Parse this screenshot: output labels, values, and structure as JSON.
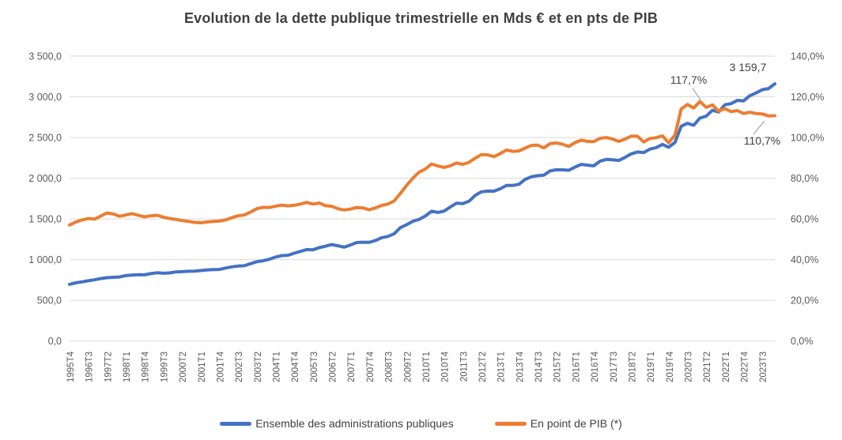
{
  "title": "Evolution de la dette publique trimestrielle en Mds € et en pts de PIB",
  "colors": {
    "debt_line": "#4472C4",
    "pib_line": "#ED7D31",
    "grid": "#D9D9D9",
    "axis_text": "#595959",
    "annotation_text": "#404040",
    "leader": "#A6A6A6",
    "background": "#FFFFFF"
  },
  "annotations": {
    "pib_peak": "117,7%",
    "debt_last": "3 159,7",
    "pib_last": "110,7%"
  },
  "y_axis_left": {
    "ticks": [
      "3 500,0",
      "3 000,0",
      "2 500,0",
      "2 000,0",
      "1 500,0",
      "1 000,0",
      "500,0",
      "0,0"
    ]
  },
  "y_axis_right": {
    "ticks": [
      "140,0%",
      "120,0%",
      "100,0%",
      "80,0%",
      "60,0%",
      "40,0%",
      "20,0%",
      "0,0%"
    ]
  },
  "legend": [
    {
      "label": "Ensemble des administrations publiques",
      "color": "#4472C4"
    },
    {
      "label": "En point de PIB (*)",
      "color": "#ED7D31"
    }
  ],
  "chart_data": {
    "type": "line",
    "title": "Evolution de la dette publique trimestrielle en Mds € et en pts de PIB",
    "grid": true,
    "legend_position": "bottom",
    "y_left_range": [
      0,
      3500
    ],
    "y_right_range": [
      0,
      140
    ],
    "x_tick_labels": [
      "1995T4",
      "1996T3",
      "1997T2",
      "1998T1",
      "1998T4",
      "1999T3",
      "2000T2",
      "2001T1",
      "2001T4",
      "2002T3",
      "2003T2",
      "2004T1",
      "2004T4",
      "2005T3",
      "2006T2",
      "2007T1",
      "2007T4",
      "2008T3",
      "2009T2",
      "2010T1",
      "2010T4",
      "2011T3",
      "2012T2",
      "2013T1",
      "2013T4",
      "2014T3",
      "2015T2",
      "2016T1",
      "2016T4",
      "2017T3",
      "2018T2",
      "2019T1",
      "2019T4",
      "2020T3",
      "2021T2",
      "2022T1",
      "2022T4",
      "2023T3"
    ],
    "x": [
      "1995T4",
      "1996T1",
      "1996T2",
      "1996T3",
      "1996T4",
      "1997T1",
      "1997T2",
      "1997T3",
      "1997T4",
      "1998T1",
      "1998T2",
      "1998T3",
      "1998T4",
      "1999T1",
      "1999T2",
      "1999T3",
      "1999T4",
      "2000T1",
      "2000T2",
      "2000T3",
      "2000T4",
      "2001T1",
      "2001T2",
      "2001T3",
      "2001T4",
      "2002T1",
      "2002T2",
      "2002T3",
      "2002T4",
      "2003T1",
      "2003T2",
      "2003T3",
      "2003T4",
      "2004T1",
      "2004T2",
      "2004T3",
      "2004T4",
      "2005T1",
      "2005T2",
      "2005T3",
      "2005T4",
      "2006T1",
      "2006T2",
      "2006T3",
      "2006T4",
      "2007T1",
      "2007T2",
      "2007T3",
      "2007T4",
      "2008T1",
      "2008T2",
      "2008T3",
      "2008T4",
      "2009T1",
      "2009T2",
      "2009T3",
      "2009T4",
      "2010T1",
      "2010T2",
      "2010T3",
      "2010T4",
      "2011T1",
      "2011T2",
      "2011T3",
      "2011T4",
      "2012T1",
      "2012T2",
      "2012T3",
      "2012T4",
      "2013T1",
      "2013T2",
      "2013T3",
      "2013T4",
      "2014T1",
      "2014T2",
      "2014T3",
      "2014T4",
      "2015T1",
      "2015T2",
      "2015T3",
      "2015T4",
      "2016T1",
      "2016T2",
      "2016T3",
      "2016T4",
      "2017T1",
      "2017T2",
      "2017T3",
      "2017T4",
      "2018T1",
      "2018T2",
      "2018T3",
      "2018T4",
      "2019T1",
      "2019T2",
      "2019T3",
      "2019T4",
      "2020T1",
      "2020T2",
      "2020T3",
      "2020T4",
      "2021T1",
      "2021T2",
      "2021T3",
      "2021T4",
      "2022T1",
      "2022T2",
      "2022T3",
      "2022T4",
      "2023T1",
      "2023T2",
      "2023T3",
      "2023T4",
      "2024T1"
    ],
    "series": [
      {
        "name": "Ensemble des administrations publiques",
        "axis": "left",
        "unit": "Mds €",
        "color": "#4472C4",
        "values": [
          697,
          715,
          727,
          740,
          752,
          768,
          778,
          783,
          787,
          803,
          810,
          815,
          813,
          828,
          838,
          833,
          836,
          848,
          852,
          857,
          858,
          866,
          872,
          877,
          879,
          897,
          911,
          921,
          925,
          950,
          974,
          986,
          1004,
          1031,
          1049,
          1054,
          1079,
          1101,
          1124,
          1121,
          1147,
          1164,
          1185,
          1170,
          1153,
          1179,
          1210,
          1214,
          1212,
          1234,
          1269,
          1285,
          1318,
          1392,
          1428,
          1471,
          1493,
          1535,
          1594,
          1580,
          1595,
          1646,
          1693,
          1688,
          1717,
          1789,
          1833,
          1842,
          1841,
          1870,
          1912,
          1911,
          1925,
          1985,
          2017,
          2031,
          2038,
          2089,
          2104,
          2103,
          2098,
          2137,
          2170,
          2160,
          2152,
          2209,
          2231,
          2226,
          2218,
          2255,
          2299,
          2322,
          2315,
          2358,
          2375,
          2415,
          2380,
          2438,
          2638,
          2674,
          2650,
          2739,
          2762,
          2834,
          2813,
          2901,
          2916,
          2957,
          2950,
          3013,
          3047,
          3088,
          3101,
          3159.7
        ]
      },
      {
        "name": "En point de PIB (*)",
        "axis": "right",
        "unit": "% du PIB",
        "color": "#ED7D31",
        "values": [
          57.0,
          58.5,
          59.5,
          60.2,
          59.9,
          61.4,
          62.9,
          62.4,
          61.3,
          61.9,
          62.6,
          61.8,
          61.0,
          61.5,
          61.8,
          60.9,
          60.2,
          59.8,
          59.2,
          58.8,
          58.3,
          58.1,
          58.5,
          58.8,
          58.9,
          59.5,
          60.6,
          61.5,
          61.9,
          63.4,
          65.0,
          65.7,
          65.6,
          66.2,
          66.8,
          66.4,
          66.7,
          67.3,
          68.1,
          67.3,
          67.8,
          66.5,
          66.2,
          65.0,
          64.4,
          64.8,
          65.6,
          65.4,
          64.5,
          65.4,
          66.6,
          67.3,
          68.8,
          72.5,
          76.5,
          80.0,
          83.0,
          84.5,
          87.0,
          86.0,
          85.3,
          86.1,
          87.5,
          86.8,
          87.8,
          89.9,
          91.6,
          91.5,
          90.6,
          92.1,
          93.8,
          93.2,
          93.4,
          94.8,
          96.1,
          96.2,
          94.9,
          97.0,
          97.3,
          96.7,
          95.6,
          97.5,
          98.7,
          98.1,
          98.0,
          99.6,
          100.0,
          99.2,
          98.1,
          99.2,
          100.7,
          100.6,
          97.8,
          99.5,
          99.9,
          100.8,
          97.4,
          101.2,
          114.0,
          116.2,
          114.5,
          117.7,
          114.8,
          116.0,
          112.9,
          114.2,
          112.7,
          113.2,
          111.8,
          112.4,
          111.8,
          111.6,
          110.6,
          110.7
        ]
      }
    ]
  }
}
